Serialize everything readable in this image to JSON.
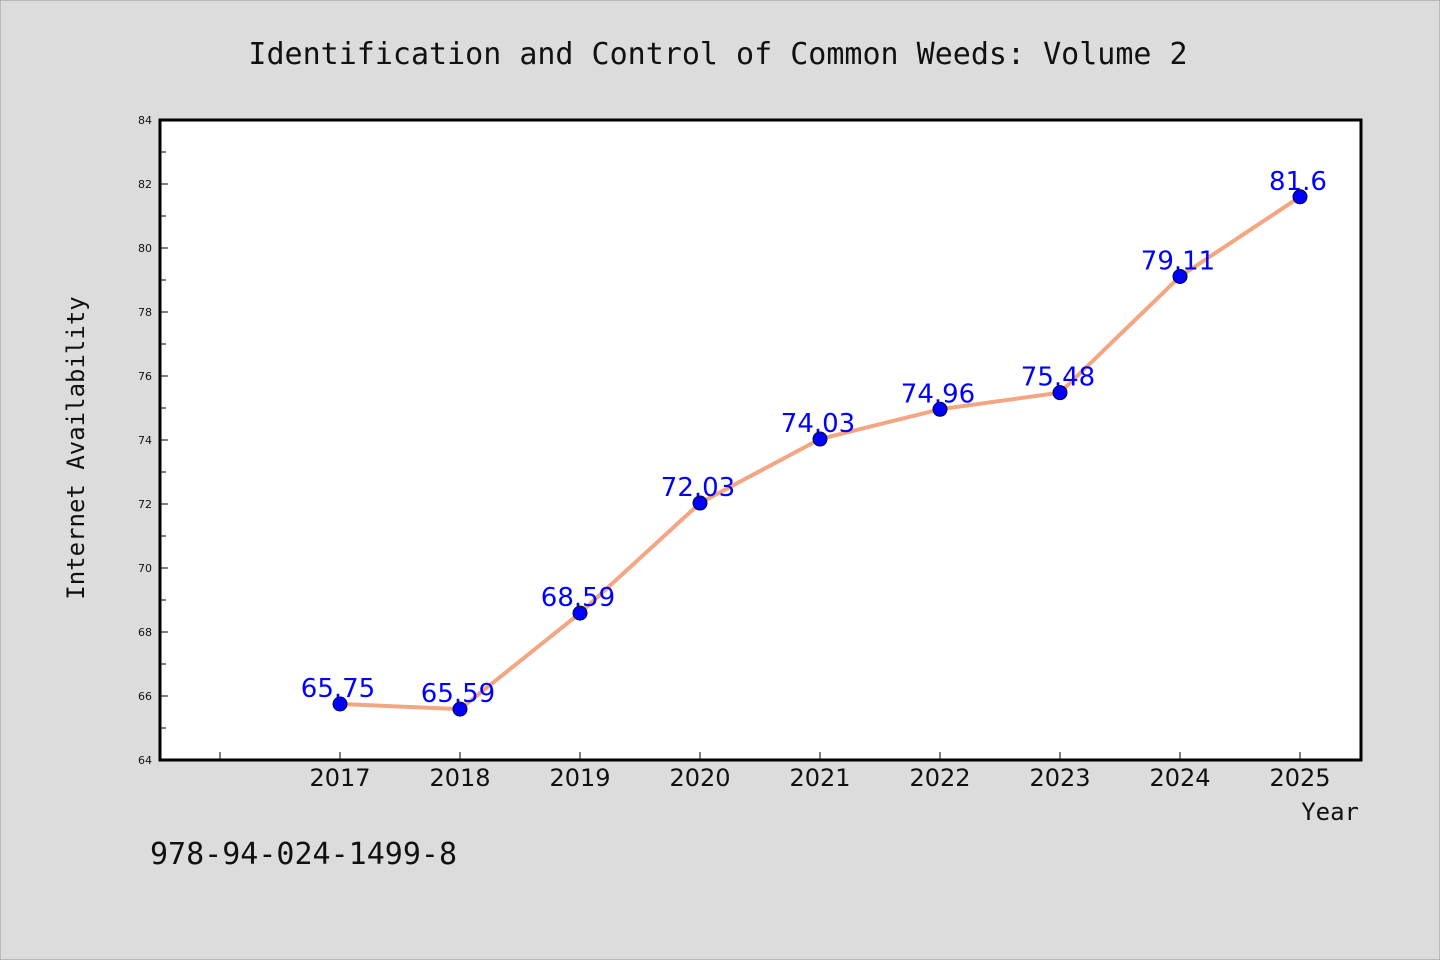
{
  "chart_data": {
    "type": "line",
    "title": "Identification and Control of Common Weeds: Volume 2",
    "xlabel": "Year",
    "ylabel": "Internet Availability",
    "categories": [
      "2017",
      "2018",
      "2019",
      "2020",
      "2021",
      "2022",
      "2023",
      "2024",
      "2025"
    ],
    "series": [
      {
        "values": [
          65.75,
          65.59,
          68.59,
          72.03,
          74.03,
          74.96,
          75.48,
          79.11,
          81.6
        ],
        "labels": [
          "65.75",
          "65.59",
          "68.59",
          "72.03",
          "74.03",
          "74.96",
          "75.48",
          "79.11",
          "81.6"
        ],
        "line_color": "#f4a582",
        "marker_color": "#0000ff"
      }
    ],
    "ylim": [
      64,
      84
    ],
    "yticks": [
      "64",
      "66",
      "68",
      "70",
      "72",
      "74",
      "76",
      "78",
      "80",
      "82",
      "84"
    ],
    "grid": false,
    "legend": "none"
  },
  "footer": {
    "isbn": "978-94-024-1499-8"
  },
  "colors": {
    "background": "#dcdcdc",
    "plot_background": "#ffffff"
  }
}
